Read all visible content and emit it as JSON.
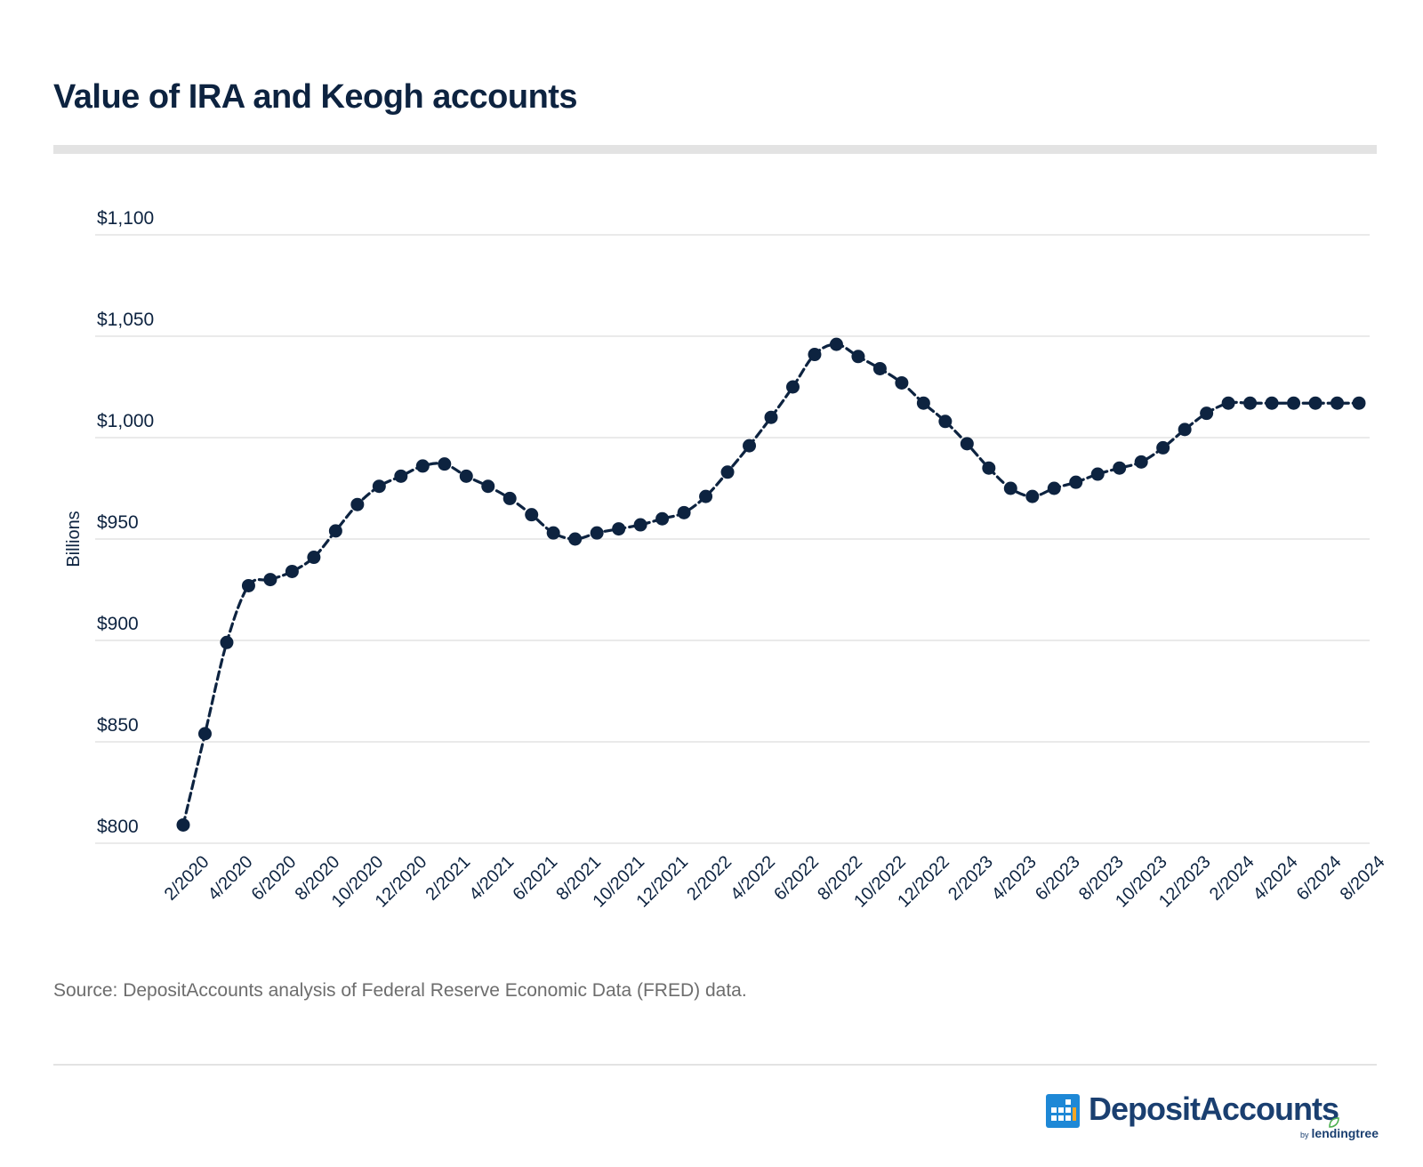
{
  "header": {
    "title": "Value of IRA and Keogh accounts"
  },
  "footer": {
    "source": "Source: DepositAccounts analysis of Federal Reserve Economic Data (FRED) data.",
    "logo_text": "DepositAccounts",
    "logo_by": "by",
    "logo_sub": "lendingtree"
  },
  "colors": {
    "line": "#0d2340",
    "grid": "#e3e3e3",
    "text": "#0d2340",
    "muted": "#6d6d6d",
    "logo_blue": "#1a3f70",
    "logo_icon": "#1e88d6",
    "logo_leaf": "#4caf50"
  },
  "chart_data": {
    "type": "line",
    "title": "Value of IRA and Keogh accounts",
    "xlabel": "",
    "ylabel": "Billions",
    "ylim": [
      800,
      1100
    ],
    "yticks": [
      800,
      850,
      900,
      950,
      1000,
      1050,
      1100
    ],
    "ytick_labels": [
      "$800",
      "$850",
      "$900",
      "$950",
      "$1,000",
      "$1,050",
      "$1,100"
    ],
    "grid": true,
    "legend": "none",
    "categories": [
      "2/2020",
      "3/2020",
      "4/2020",
      "5/2020",
      "6/2020",
      "7/2020",
      "8/2020",
      "9/2020",
      "10/2020",
      "11/2020",
      "12/2020",
      "1/2021",
      "2/2021",
      "3/2021",
      "4/2021",
      "5/2021",
      "6/2021",
      "7/2021",
      "8/2021",
      "9/2021",
      "10/2021",
      "11/2021",
      "12/2021",
      "1/2022",
      "2/2022",
      "3/2022",
      "4/2022",
      "5/2022",
      "6/2022",
      "7/2022",
      "8/2022",
      "9/2022",
      "10/2022",
      "11/2022",
      "12/2022",
      "1/2023",
      "2/2023",
      "3/2023",
      "4/2023",
      "5/2023",
      "6/2023",
      "7/2023",
      "8/2023",
      "9/2023",
      "10/2023",
      "11/2023",
      "12/2023",
      "1/2024",
      "2/2024",
      "3/2024",
      "4/2024",
      "5/2024",
      "6/2024",
      "7/2024",
      "8/2024"
    ],
    "tick_labels": [
      "2/2020",
      "4/2020",
      "6/2020",
      "8/2020",
      "10/2020",
      "12/2020",
      "2/2021",
      "4/2021",
      "6/2021",
      "8/2021",
      "10/2021",
      "12/2021",
      "2/2022",
      "4/2022",
      "6/2022",
      "8/2022",
      "10/2022",
      "12/2022",
      "2/2023",
      "4/2023",
      "6/2023",
      "8/2023",
      "10/2023",
      "12/2023",
      "2/2024",
      "4/2024",
      "6/2024",
      "8/2024"
    ],
    "series": [
      {
        "name": "Value of IRA and Keogh accounts (Billions)",
        "values": [
          809,
          854,
          899,
          927,
          930,
          934,
          941,
          954,
          967,
          976,
          981,
          986,
          987,
          981,
          976,
          970,
          962,
          953,
          950,
          953,
          955,
          957,
          960,
          963,
          971,
          983,
          996,
          1010,
          1025,
          1041,
          1046,
          1040,
          1034,
          1027,
          1017,
          1008,
          997,
          985,
          975,
          971,
          975,
          978,
          982,
          985,
          988,
          995,
          1004,
          1012,
          1017,
          1017,
          1017,
          1017,
          1017,
          1017,
          1017
        ]
      }
    ]
  }
}
